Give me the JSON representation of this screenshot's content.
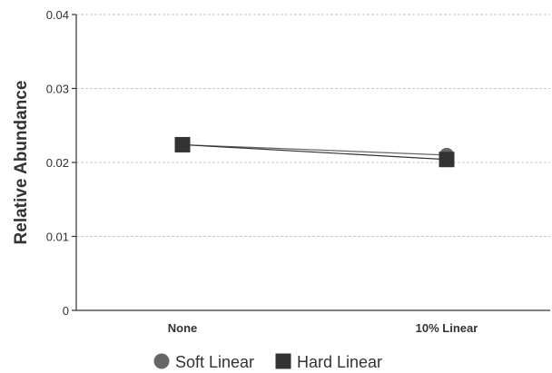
{
  "chart_data": {
    "type": "line",
    "categories": [
      "None",
      "10% Linear"
    ],
    "series": [
      {
        "name": "Soft Linear",
        "marker": "circle",
        "color": "#666666",
        "values": [
          0.0224,
          0.021
        ]
      },
      {
        "name": "Hard Linear",
        "marker": "square",
        "color": "#333333",
        "values": [
          0.0224,
          0.0204
        ]
      }
    ],
    "ylabel": "Relative Abundance",
    "xlabel": "",
    "ylim": [
      0,
      0.04
    ],
    "yticks": [
      "0",
      "0.01",
      "0.02",
      "0.03",
      "0.04"
    ],
    "grid": true,
    "legend": "bottom-center"
  }
}
